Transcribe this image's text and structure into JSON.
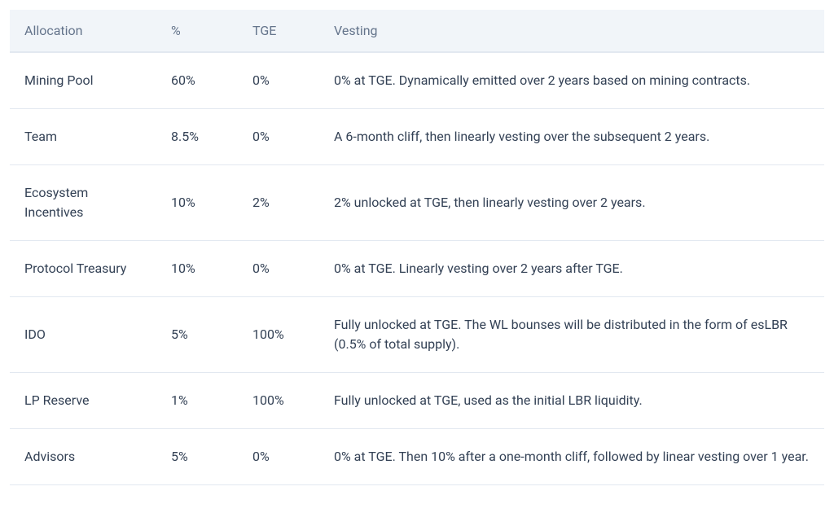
{
  "table": {
    "columns": [
      "Allocation",
      "%",
      "TGE",
      "Vesting"
    ],
    "column_widths_pct": [
      18,
      10,
      10,
      62
    ],
    "rows": [
      {
        "allocation": "Mining Pool",
        "pct": "60%",
        "tge": "0%",
        "vesting": "0% at TGE. Dynamically emitted over 2 years based on mining contracts."
      },
      {
        "allocation": "Team",
        "pct": "8.5%",
        "tge": "0%",
        "vesting": "A 6-month cliff, then linearly vesting over the subsequent 2 years."
      },
      {
        "allocation": "Ecosystem Incentives",
        "pct": "10%",
        "tge": "2%",
        "vesting": "2% unlocked at TGE, then linearly vesting over 2 years."
      },
      {
        "allocation": "Protocol Treasury",
        "pct": "10%",
        "tge": "0%",
        "vesting": "0% at TGE. Linearly vesting over 2 years after TGE."
      },
      {
        "allocation": "IDO",
        "pct": "5%",
        "tge": "100%",
        "vesting": "Fully unlocked at TGE. The WL bounses will be distributed in the form of esLBR (0.5% of total supply)."
      },
      {
        "allocation": "LP Reserve",
        "pct": "1%",
        "tge": "100%",
        "vesting": "Fully unlocked at TGE, used as the initial LBR liquidity."
      },
      {
        "allocation": "Advisors",
        "pct": "5%",
        "tge": "0%",
        "vesting": "0% at TGE. Then 10% after a one-month cliff, followed by linear vesting over 1 year."
      }
    ],
    "header_bg": "#f1f5f9",
    "header_text_color": "#64748b",
    "body_text_color": "#334155",
    "border_color": "#e2e8f0",
    "font_size_pt": 16
  }
}
